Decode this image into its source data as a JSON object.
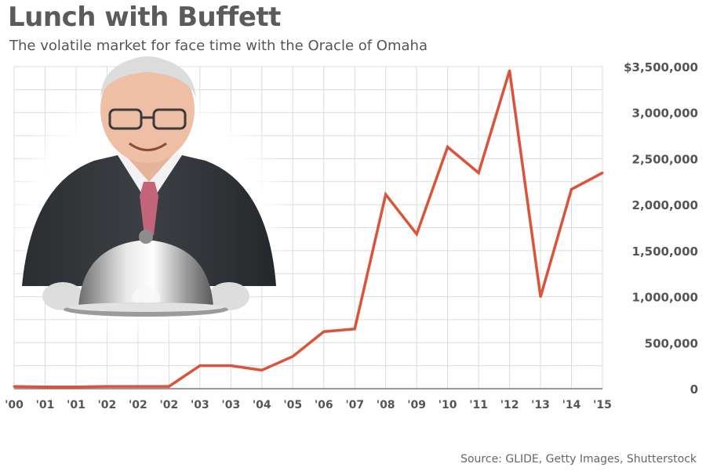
{
  "header": {
    "title": "Lunch with Buffett",
    "subtitle": "The volatile market for face time with the Oracle of Omaha"
  },
  "footer": {
    "source": "Source: GLIDE, Getty Images, Shutterstock"
  },
  "colors": {
    "line": "#d9543a",
    "grid": "#dcdcdc",
    "text": "#555555"
  },
  "chart_data": {
    "type": "line",
    "title": "Lunch with Buffett",
    "subtitle": "The volatile market for face time with the Oracle of Omaha",
    "x": [
      "'00",
      "'01",
      "'01",
      "'02",
      "'02",
      "'02",
      "'03",
      "'03",
      "'04",
      "'05",
      "'06",
      "'07",
      "'08",
      "'09",
      "'10",
      "'11",
      "'12",
      "'13",
      "'14",
      "'15"
    ],
    "values": [
      25000,
      20000,
      20000,
      25000,
      25000,
      25000,
      250000,
      250000,
      202100,
      351100,
      620100,
      650100,
      2110100,
      1680300,
      2626411,
      2345678,
      3456789,
      1000100,
      2166766,
      2345678
    ],
    "ylim": [
      0,
      3500000
    ],
    "yticks": [
      0,
      500000,
      1000000,
      1500000,
      2000000,
      2500000,
      3000000,
      3500000
    ],
    "ytick_labels": [
      "0",
      "500,000",
      "1,000,000",
      "1,500,000",
      "2,000,000",
      "2,500,000",
      "3,000,000",
      "$3,500,000"
    ],
    "grid": true,
    "xlabel": "",
    "ylabel": ""
  }
}
